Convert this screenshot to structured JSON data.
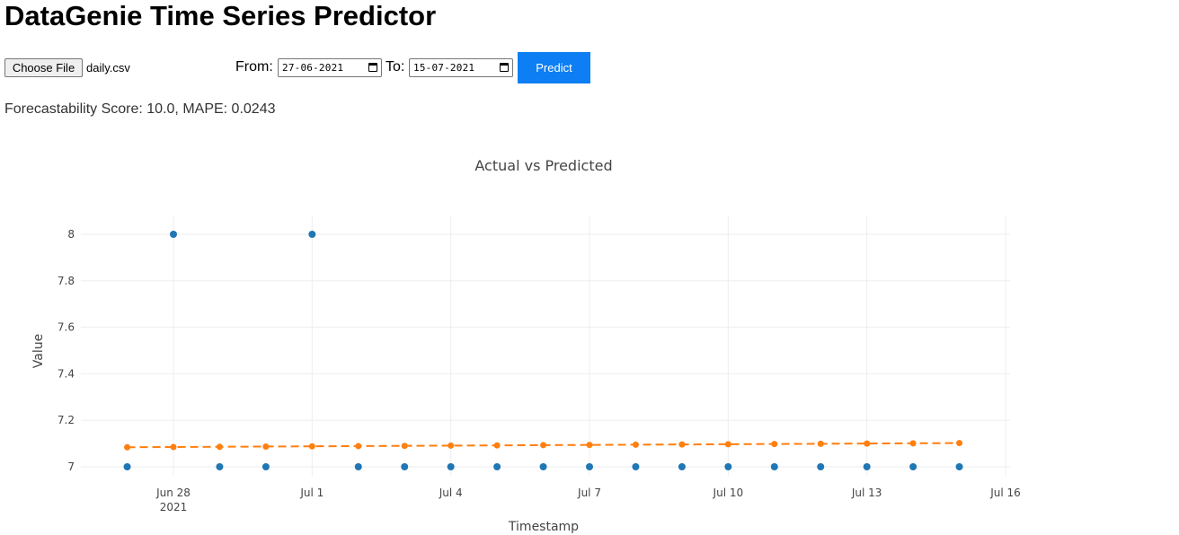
{
  "page": {
    "title": "DataGenie Time Series Predictor"
  },
  "controls": {
    "file_button_label": "Choose File",
    "file_name": "daily.csv",
    "from_label": "From:",
    "from_value": "27-06-2021",
    "to_label": "To:",
    "to_value": "15-07-2021",
    "predict_label": "Predict",
    "predict_color": "#0d7ef3",
    "calendar_icon": "calendar-icon"
  },
  "result": {
    "score_text": "Forecastability Score: 10.0, MAPE: 0.0243"
  },
  "chart_data": {
    "type": "scatter",
    "title": "Actual vs Predicted",
    "xlabel": "Timestamp",
    "ylabel": "Value",
    "ylim": [
      6.98,
      8.08
    ],
    "xlim": [
      "2021-06-26",
      "2021-07-16"
    ],
    "grid": true,
    "x_ticks": [
      {
        "date": "2021-06-28",
        "label": "Jun 28",
        "sublabel": "2021"
      },
      {
        "date": "2021-07-01",
        "label": "Jul 1",
        "sublabel": ""
      },
      {
        "date": "2021-07-04",
        "label": "Jul 4",
        "sublabel": ""
      },
      {
        "date": "2021-07-07",
        "label": "Jul 7",
        "sublabel": ""
      },
      {
        "date": "2021-07-10",
        "label": "Jul 10",
        "sublabel": ""
      },
      {
        "date": "2021-07-13",
        "label": "Jul 13",
        "sublabel": ""
      },
      {
        "date": "2021-07-16",
        "label": "Jul 16",
        "sublabel": ""
      }
    ],
    "y_ticks": [
      {
        "value": 7,
        "label": "7"
      },
      {
        "value": 7.2,
        "label": "7.2"
      },
      {
        "value": 7.4,
        "label": "7.4"
      },
      {
        "value": 7.6,
        "label": "7.6"
      },
      {
        "value": 7.8,
        "label": "7.8"
      },
      {
        "value": 8,
        "label": "8"
      }
    ],
    "x": [
      "2021-06-27",
      "2021-06-28",
      "2021-06-29",
      "2021-06-30",
      "2021-07-01",
      "2021-07-02",
      "2021-07-03",
      "2021-07-04",
      "2021-07-05",
      "2021-07-06",
      "2021-07-07",
      "2021-07-08",
      "2021-07-09",
      "2021-07-10",
      "2021-07-11",
      "2021-07-12",
      "2021-07-13",
      "2021-07-14",
      "2021-07-15"
    ],
    "series": [
      {
        "style": "markers",
        "color": "#1f77b4",
        "values": [
          7,
          8,
          7,
          7,
          8,
          7,
          7,
          7,
          7,
          7,
          7,
          7,
          7,
          7,
          7,
          7,
          7,
          7,
          7
        ]
      },
      {
        "style": "dashed-line-markers",
        "color": "#ff7f0e",
        "values": [
          7.084,
          7.085,
          7.086,
          7.087,
          7.088,
          7.089,
          7.09,
          7.091,
          7.092,
          7.093,
          7.094,
          7.095,
          7.096,
          7.097,
          7.098,
          7.099,
          7.1,
          7.101,
          7.102
        ]
      }
    ]
  }
}
